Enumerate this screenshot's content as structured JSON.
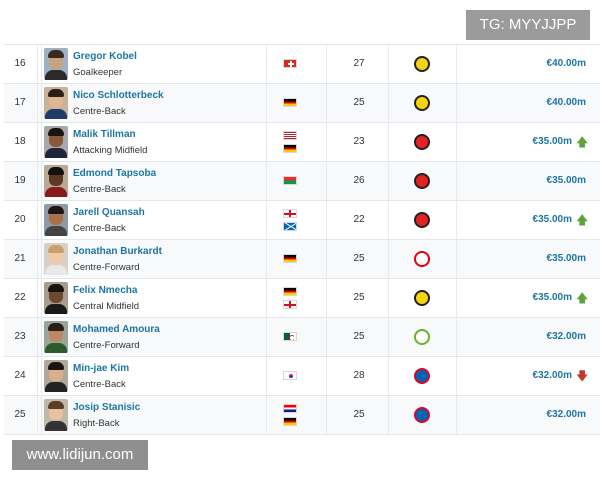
{
  "watermarks": {
    "top": "TG: MYYJJPP",
    "bottom": "www.lidijun.com"
  },
  "rows": [
    {
      "num": "16",
      "name": "Gregor Kobel",
      "position": "Goalkeeper",
      "flags": [
        "switzerland-flag"
      ],
      "age": "27",
      "club": "dortmund-crest",
      "value": "€40.00m",
      "trend": ""
    },
    {
      "num": "17",
      "name": "Nico Schlotterbeck",
      "position": "Centre-Back",
      "flags": [
        "germany-flag"
      ],
      "age": "25",
      "club": "dortmund-crest",
      "value": "€40.00m",
      "trend": ""
    },
    {
      "num": "18",
      "name": "Malik Tillman",
      "position": "Attacking Midfield",
      "flags": [
        "usa-flag",
        "germany-flag"
      ],
      "age": "23",
      "club": "leverkusen-crest",
      "value": "€35.00m",
      "trend": "up",
      "trend_symbol": "🡅"
    },
    {
      "num": "19",
      "name": "Edmond Tapsoba",
      "position": "Centre-Back",
      "flags": [
        "burkina-faso-flag"
      ],
      "age": "26",
      "club": "leverkusen-crest",
      "value": "€35.00m",
      "trend": ""
    },
    {
      "num": "20",
      "name": "Jarell Quansah",
      "position": "Centre-Back",
      "flags": [
        "england-flag",
        "scotland-flag"
      ],
      "age": "22",
      "club": "leverkusen-crest",
      "value": "€35.00m",
      "trend": "up",
      "trend_symbol": "🡅"
    },
    {
      "num": "21",
      "name": "Jonathan Burkardt",
      "position": "Centre-Forward",
      "flags": [
        "germany-flag"
      ],
      "age": "25",
      "club": "frankfurt-crest",
      "value": "€35.00m",
      "trend": ""
    },
    {
      "num": "22",
      "name": "Felix Nmecha",
      "position": "Central Midfield",
      "flags": [
        "germany-flag",
        "england-flag"
      ],
      "age": "25",
      "club": "dortmund-crest",
      "value": "€35.00m",
      "trend": "up",
      "trend_symbol": "🡅"
    },
    {
      "num": "23",
      "name": "Mohamed Amoura",
      "position": "Centre-Forward",
      "flags": [
        "algeria-flag"
      ],
      "age": "25",
      "club": "wolfsburg-crest",
      "value": "€32.00m",
      "trend": ""
    },
    {
      "num": "24",
      "name": "Min-jae Kim",
      "position": "Centre-Back",
      "flags": [
        "korea-flag"
      ],
      "age": "28",
      "club": "bayern-crest",
      "value": "€32.00m",
      "trend": "down",
      "trend_symbol": "🡇"
    },
    {
      "num": "25",
      "name": "Josip Stanisic",
      "position": "Right-Back",
      "flags": [
        "croatia-flag",
        "germany-flag"
      ],
      "age": "25",
      "club": "bayern-crest",
      "value": "€32.00m",
      "trend": ""
    }
  ],
  "colors": {
    "link": "#1d75a3",
    "up": "#5ba33a",
    "down": "#c0392b",
    "dortmund": "#f5d312",
    "leverkusen": "#e32221",
    "frankfurt": "#e1000f",
    "wolfsburg": "#65b32e",
    "bayern": "#dc052d"
  }
}
